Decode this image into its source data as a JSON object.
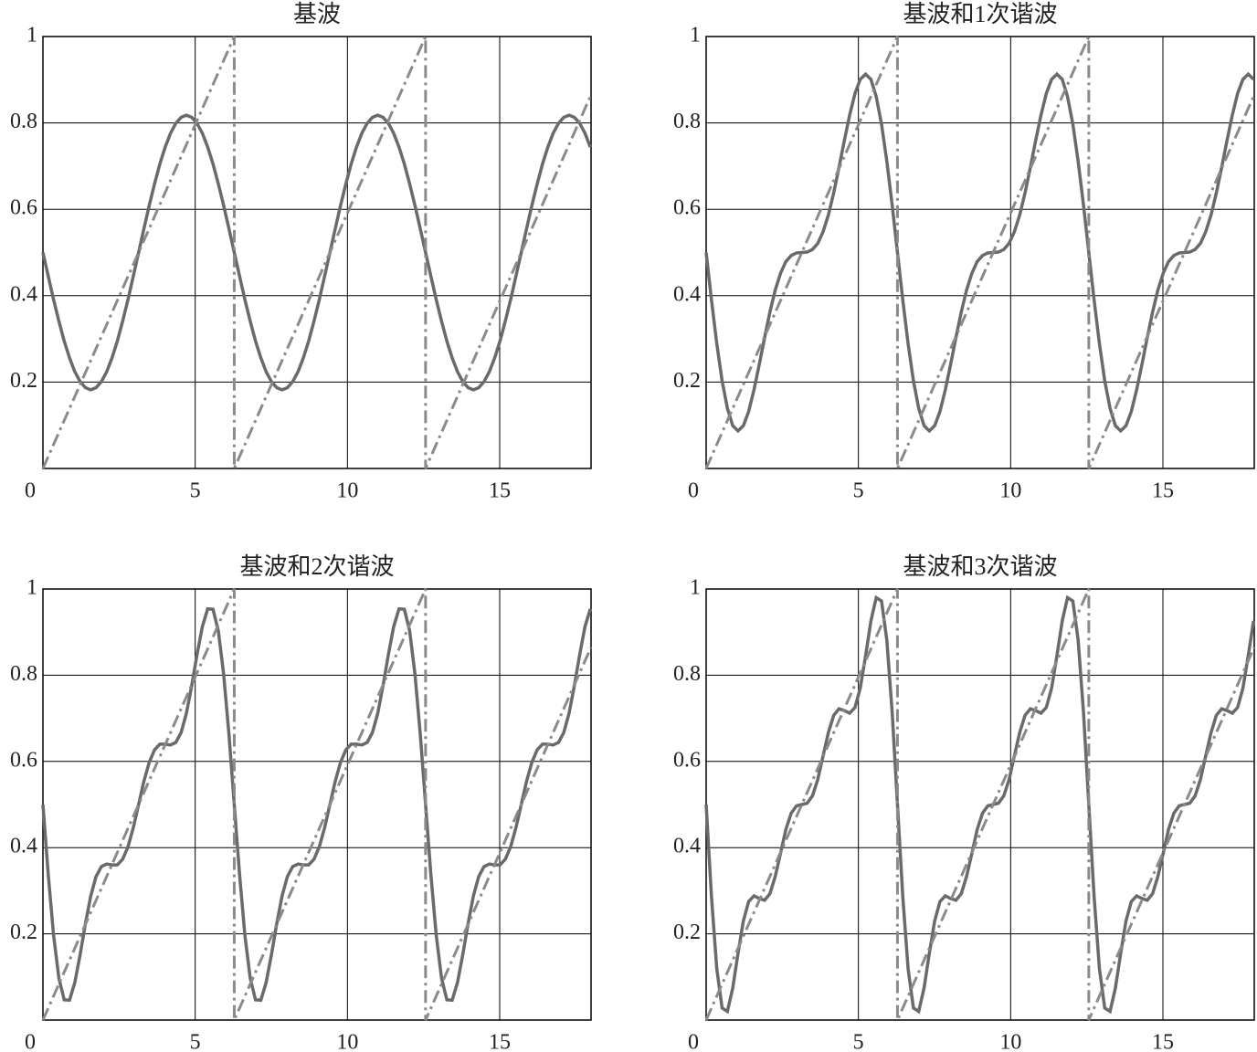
{
  "chart_data": [
    {
      "type": "line",
      "title": "基波",
      "xlim": [
        0,
        18
      ],
      "ylim": [
        0,
        1
      ],
      "xticks": [
        0,
        5,
        10,
        15
      ],
      "yticks": [
        0.2,
        0.4,
        0.6,
        0.8,
        1
      ],
      "grid": true,
      "x": [
        0,
        0.175,
        0.349,
        0.524,
        0.698,
        0.873,
        1.047,
        1.222,
        1.396,
        1.571,
        1.745,
        1.92,
        2.094,
        2.269,
        2.443,
        2.618,
        2.793,
        2.967,
        3.142,
        3.316,
        3.491,
        3.665,
        3.84,
        4.014,
        4.189,
        4.363,
        4.538,
        4.712,
        4.887,
        5.061,
        5.236,
        5.411,
        5.585,
        5.76,
        5.934,
        6.109,
        6.283,
        6.458,
        6.632,
        6.807,
        6.981,
        7.156,
        7.33,
        7.505,
        7.679,
        7.854,
        8.029,
        8.203,
        8.378,
        8.552,
        8.727,
        8.901,
        9.076,
        9.25,
        9.425,
        9.599,
        9.774,
        9.948,
        10.123,
        10.297,
        10.472,
        10.647,
        10.821,
        10.996,
        11.17,
        11.345,
        11.519,
        11.694,
        11.868,
        12.043,
        12.217,
        12.392,
        12.566,
        12.741,
        12.915,
        13.09,
        13.265,
        13.439,
        13.614,
        13.788,
        13.963,
        14.137,
        14.312,
        14.486,
        14.661,
        14.835,
        15.01,
        15.184,
        15.359,
        15.533,
        15.708,
        15.882,
        16.057,
        16.232,
        16.406,
        16.581,
        16.755,
        16.93,
        17.104,
        17.279,
        17.453,
        17.628,
        17.802,
        17.977
      ],
      "series": [
        {
          "color": "#6a6a6a",
          "values": [
            0.5,
            0.445,
            0.391,
            0.341,
            0.295,
            0.256,
            0.224,
            0.201,
            0.187,
            0.182,
            0.187,
            0.201,
            0.224,
            0.256,
            0.295,
            0.341,
            0.391,
            0.445,
            0.5,
            0.555,
            0.609,
            0.659,
            0.705,
            0.744,
            0.776,
            0.799,
            0.813,
            0.818,
            0.813,
            0.799,
            0.776,
            0.744,
            0.705,
            0.659,
            0.609,
            0.555,
            0.5,
            0.445,
            0.391,
            0.341,
            0.295,
            0.256,
            0.224,
            0.201,
            0.187,
            0.182,
            0.187,
            0.201,
            0.224,
            0.256,
            0.295,
            0.341,
            0.391,
            0.445,
            0.5,
            0.555,
            0.609,
            0.659,
            0.705,
            0.744,
            0.776,
            0.799,
            0.813,
            0.818,
            0.813,
            0.799,
            0.776,
            0.744,
            0.705,
            0.659,
            0.609,
            0.555,
            0.5,
            0.445,
            0.391,
            0.341,
            0.295,
            0.256,
            0.224,
            0.201,
            0.187,
            0.182,
            0.187,
            0.201,
            0.224,
            0.256,
            0.295,
            0.341,
            0.391,
            0.445,
            0.5,
            0.555,
            0.609,
            0.659,
            0.705,
            0.744,
            0.776,
            0.799,
            0.813,
            0.818,
            0.813,
            0.799,
            0.776,
            0.744
          ]
        },
        {
          "color": "#8a8a8a",
          "dashed": true,
          "x": [
            0,
            6.283,
            6.283,
            12.566,
            12.566,
            18
          ],
          "values": [
            0,
            1,
            0,
            1,
            0,
            0.865
          ]
        }
      ]
    },
    {
      "type": "line",
      "title": "基波和1次谐波",
      "xlim": [
        0,
        18
      ],
      "ylim": [
        0,
        1
      ],
      "xticks": [
        0,
        5,
        10,
        15
      ],
      "yticks": [
        0.2,
        0.4,
        0.6,
        0.8,
        1
      ],
      "grid": true,
      "x": [
        0,
        0.175,
        0.349,
        0.524,
        0.698,
        0.873,
        1.047,
        1.222,
        1.396,
        1.571,
        1.745,
        1.92,
        2.094,
        2.269,
        2.443,
        2.618,
        2.793,
        2.967,
        3.142,
        3.316,
        3.491,
        3.665,
        3.84,
        4.014,
        4.189,
        4.363,
        4.538,
        4.712,
        4.887,
        5.061,
        5.236,
        5.411,
        5.585,
        5.76,
        5.934,
        6.109,
        6.283,
        6.458,
        6.632,
        6.807,
        6.981,
        7.156,
        7.33,
        7.505,
        7.679,
        7.854,
        8.029,
        8.203,
        8.378,
        8.552,
        8.727,
        8.901,
        9.076,
        9.25,
        9.425,
        9.599,
        9.774,
        9.948,
        10.123,
        10.297,
        10.472,
        10.647,
        10.821,
        10.996,
        11.17,
        11.345,
        11.519,
        11.694,
        11.868,
        12.043,
        12.217,
        12.392,
        12.566,
        12.741,
        12.915,
        13.09,
        13.265,
        13.439,
        13.614,
        13.788,
        13.963,
        14.137,
        14.312,
        14.486,
        14.661,
        14.835,
        15.01,
        15.184,
        15.359,
        15.533,
        15.708,
        15.882,
        16.057,
        16.232,
        16.406,
        16.581,
        16.755,
        16.93,
        17.104,
        17.279,
        17.453,
        17.628,
        17.802,
        17.977
      ],
      "series": [
        {
          "color": "#6a6a6a",
          "values": [
            0.5,
            0.39,
            0.289,
            0.203,
            0.139,
            0.099,
            0.087,
            0.099,
            0.132,
            0.182,
            0.241,
            0.303,
            0.362,
            0.413,
            0.452,
            0.479,
            0.493,
            0.499,
            0.5,
            0.501,
            0.507,
            0.521,
            0.548,
            0.587,
            0.638,
            0.697,
            0.759,
            0.818,
            0.868,
            0.901,
            0.913,
            0.901,
            0.861,
            0.797,
            0.711,
            0.61,
            0.5,
            0.39,
            0.289,
            0.203,
            0.139,
            0.099,
            0.087,
            0.099,
            0.132,
            0.182,
            0.241,
            0.303,
            0.362,
            0.413,
            0.452,
            0.479,
            0.493,
            0.499,
            0.5,
            0.501,
            0.507,
            0.521,
            0.548,
            0.587,
            0.638,
            0.697,
            0.759,
            0.818,
            0.868,
            0.901,
            0.913,
            0.901,
            0.861,
            0.797,
            0.711,
            0.61,
            0.5,
            0.39,
            0.289,
            0.203,
            0.139,
            0.099,
            0.087,
            0.099,
            0.132,
            0.182,
            0.241,
            0.303,
            0.362,
            0.413,
            0.452,
            0.479,
            0.493,
            0.499,
            0.5,
            0.501,
            0.507,
            0.521,
            0.548,
            0.587,
            0.638,
            0.697,
            0.759,
            0.818,
            0.868,
            0.901,
            0.913,
            0.901
          ]
        },
        {
          "color": "#8a8a8a",
          "dashed": true,
          "x": [
            0,
            6.283,
            6.283,
            12.566,
            12.566,
            18
          ],
          "values": [
            0,
            1,
            0,
            1,
            0,
            0.865
          ]
        }
      ]
    },
    {
      "type": "line",
      "title": "基波和2次谐波",
      "xlim": [
        0,
        18
      ],
      "ylim": [
        0,
        1
      ],
      "xticks": [
        0,
        5,
        10,
        15
      ],
      "yticks": [
        0.2,
        0.4,
        0.6,
        0.8,
        1
      ],
      "grid": true,
      "x": [
        0,
        0.175,
        0.349,
        0.524,
        0.698,
        0.873,
        1.047,
        1.222,
        1.396,
        1.571,
        1.745,
        1.92,
        2.094,
        2.269,
        2.443,
        2.618,
        2.793,
        2.967,
        3.142,
        3.316,
        3.491,
        3.665,
        3.84,
        4.014,
        4.189,
        4.363,
        4.538,
        4.712,
        4.887,
        5.061,
        5.236,
        5.411,
        5.585,
        5.76,
        5.934,
        6.109,
        6.283,
        6.458,
        6.632,
        6.807,
        6.981,
        7.156,
        7.33,
        7.505,
        7.679,
        7.854,
        8.029,
        8.203,
        8.378,
        8.552,
        8.727,
        8.901,
        9.076,
        9.25,
        9.425,
        9.599,
        9.774,
        9.948,
        10.123,
        10.297,
        10.472,
        10.647,
        10.821,
        10.996,
        11.17,
        11.345,
        11.519,
        11.694,
        11.868,
        12.043,
        12.217,
        12.392,
        12.566,
        12.741,
        12.915,
        13.09,
        13.265,
        13.439,
        13.614,
        13.788,
        13.963,
        14.137,
        14.312,
        14.486,
        14.661,
        14.835,
        15.01,
        15.184,
        15.359,
        15.533,
        15.708,
        15.882,
        16.057,
        16.232,
        16.406,
        16.581,
        16.755,
        16.93,
        17.104,
        17.279,
        17.453,
        17.628,
        17.802,
        17.977
      ],
      "series": [
        {
          "color": "#6a6a6a",
          "values": [
            0.5,
            0.337,
            0.197,
            0.097,
            0.047,
            0.046,
            0.087,
            0.152,
            0.224,
            0.288,
            0.333,
            0.356,
            0.362,
            0.36,
            0.36,
            0.373,
            0.402,
            0.446,
            0.5,
            0.554,
            0.598,
            0.627,
            0.64,
            0.64,
            0.638,
            0.644,
            0.667,
            0.712,
            0.776,
            0.848,
            0.913,
            0.954,
            0.953,
            0.903,
            0.803,
            0.663,
            0.5,
            0.337,
            0.197,
            0.097,
            0.047,
            0.046,
            0.087,
            0.152,
            0.224,
            0.288,
            0.333,
            0.356,
            0.362,
            0.36,
            0.36,
            0.373,
            0.402,
            0.446,
            0.5,
            0.554,
            0.598,
            0.627,
            0.64,
            0.64,
            0.638,
            0.644,
            0.667,
            0.712,
            0.776,
            0.848,
            0.913,
            0.954,
            0.953,
            0.903,
            0.803,
            0.663,
            0.5,
            0.337,
            0.197,
            0.097,
            0.047,
            0.046,
            0.087,
            0.152,
            0.224,
            0.288,
            0.333,
            0.356,
            0.362,
            0.36,
            0.36,
            0.373,
            0.402,
            0.446,
            0.5,
            0.554,
            0.598,
            0.627,
            0.64,
            0.64,
            0.638,
            0.644,
            0.667,
            0.712,
            0.776,
            0.848,
            0.913,
            0.954
          ]
        },
        {
          "color": "#8a8a8a",
          "dashed": true,
          "x": [
            0,
            6.283,
            6.283,
            12.566,
            12.566,
            18
          ],
          "values": [
            0,
            1,
            0,
            1,
            0,
            0.865
          ]
        }
      ]
    },
    {
      "type": "line",
      "title": "基波和3次谐波",
      "xlim": [
        0,
        18
      ],
      "ylim": [
        0,
        1
      ],
      "xticks": [
        0,
        5,
        10,
        15
      ],
      "yticks": [
        0.2,
        0.4,
        0.6,
        0.8,
        1
      ],
      "grid": true,
      "x": [
        0,
        0.175,
        0.349,
        0.524,
        0.698,
        0.873,
        1.047,
        1.222,
        1.396,
        1.571,
        1.745,
        1.92,
        2.094,
        2.269,
        2.443,
        2.618,
        2.793,
        2.967,
        3.142,
        3.316,
        3.491,
        3.665,
        3.84,
        4.014,
        4.189,
        4.363,
        4.538,
        4.712,
        4.887,
        5.061,
        5.236,
        5.411,
        5.585,
        5.76,
        5.934,
        6.109,
        6.283,
        6.458,
        6.632,
        6.807,
        6.981,
        7.156,
        7.33,
        7.505,
        7.679,
        7.854,
        8.029,
        8.203,
        8.378,
        8.552,
        8.727,
        8.901,
        9.076,
        9.25,
        9.425,
        9.599,
        9.774,
        9.948,
        10.123,
        10.297,
        10.472,
        10.647,
        10.821,
        10.996,
        11.17,
        11.345,
        11.519,
        11.694,
        11.868,
        12.043,
        12.217,
        12.392,
        12.566,
        12.741,
        12.915,
        13.09,
        13.265,
        13.439,
        13.614,
        13.788,
        13.963,
        14.137,
        14.312,
        14.486,
        14.661,
        14.835,
        15.01,
        15.184,
        15.359,
        15.533,
        15.708,
        15.882,
        16.057,
        16.232,
        16.406,
        16.581,
        16.755,
        16.93,
        17.104,
        17.279,
        17.453,
        17.628,
        17.802,
        17.977
      ],
      "series": [
        {
          "color": "#6a6a6a",
          "values": [
            0.5,
            0.286,
            0.119,
            0.028,
            0.02,
            0.074,
            0.155,
            0.23,
            0.275,
            0.288,
            0.282,
            0.278,
            0.293,
            0.333,
            0.387,
            0.442,
            0.48,
            0.497,
            0.5,
            0.503,
            0.52,
            0.558,
            0.613,
            0.667,
            0.707,
            0.722,
            0.718,
            0.712,
            0.725,
            0.77,
            0.845,
            0.926,
            0.98,
            0.972,
            0.881,
            0.714,
            0.5,
            0.286,
            0.119,
            0.028,
            0.02,
            0.074,
            0.155,
            0.23,
            0.275,
            0.288,
            0.282,
            0.278,
            0.293,
            0.333,
            0.387,
            0.442,
            0.48,
            0.497,
            0.5,
            0.503,
            0.52,
            0.558,
            0.613,
            0.667,
            0.707,
            0.722,
            0.718,
            0.712,
            0.725,
            0.77,
            0.845,
            0.926,
            0.98,
            0.972,
            0.881,
            0.714,
            0.5,
            0.286,
            0.119,
            0.028,
            0.02,
            0.074,
            0.155,
            0.23,
            0.275,
            0.288,
            0.282,
            0.278,
            0.293,
            0.333,
            0.387,
            0.442,
            0.48,
            0.497,
            0.5,
            0.503,
            0.52,
            0.558,
            0.613,
            0.667,
            0.707,
            0.722,
            0.718,
            0.712,
            0.725,
            0.77,
            0.845,
            0.926
          ]
        },
        {
          "color": "#8a8a8a",
          "dashed": true,
          "x": [
            0,
            6.283,
            6.283,
            12.566,
            12.566,
            18
          ],
          "values": [
            0,
            1,
            0,
            1,
            0,
            0.865
          ]
        }
      ]
    }
  ]
}
